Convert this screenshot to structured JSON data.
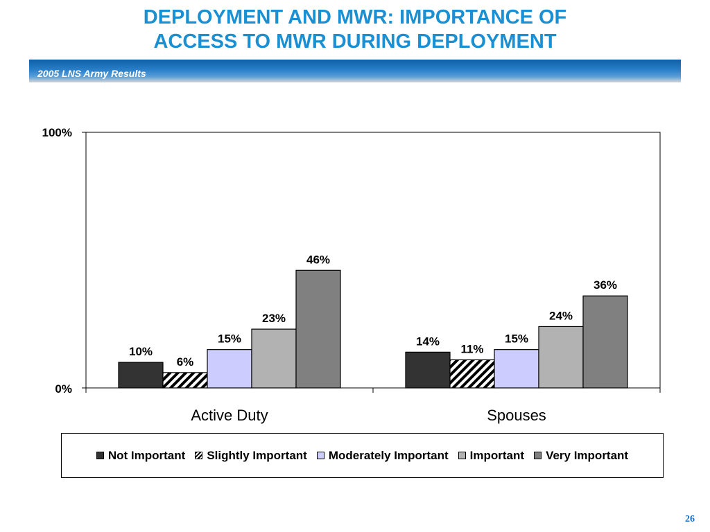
{
  "title": {
    "line1": "DEPLOYMENT AND MWR: IMPORTANCE OF",
    "line2": "ACCESS TO MWR DURING DEPLOYMENT"
  },
  "banner": {
    "text": "2005 LNS Army Results"
  },
  "page_number": "26",
  "chart_data": {
    "type": "bar",
    "categories": [
      "Active Duty",
      "Spouses"
    ],
    "series": [
      {
        "name": "Not Important",
        "values": [
          10,
          14
        ],
        "labels": [
          "10%",
          "14%"
        ],
        "color": "#333333",
        "pattern": "solid"
      },
      {
        "name": "Slightly Important",
        "values": [
          6,
          11
        ],
        "labels": [
          "6%",
          "11%"
        ],
        "color": "#ffffff",
        "pattern": "diagonal-hatch"
      },
      {
        "name": "Moderately Important",
        "values": [
          15,
          15
        ],
        "labels": [
          "15%",
          "15%"
        ],
        "color": "#ccccff",
        "pattern": "solid"
      },
      {
        "name": "Important",
        "values": [
          23,
          24
        ],
        "labels": [
          "23%",
          "24%"
        ],
        "color": "#b2b2b2",
        "pattern": "solid"
      },
      {
        "name": "Very Important",
        "values": [
          46,
          36
        ],
        "labels": [
          "46%",
          "36%"
        ],
        "color": "#808080",
        "pattern": "solid"
      }
    ],
    "ylim": [
      0,
      100
    ],
    "yticks": [
      "0%",
      "100%"
    ],
    "xlabel": "",
    "ylabel": "",
    "grid": false,
    "legend_position": "bottom"
  }
}
